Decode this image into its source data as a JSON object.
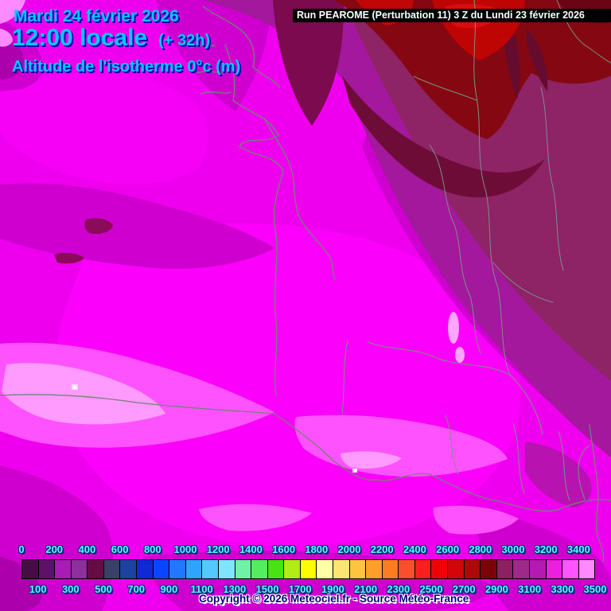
{
  "header": {
    "date": "Mardi 24 février 2026",
    "time": "12:00 locale",
    "offset": "(+ 32h)",
    "variable": "Altitude de l'isotherme 0°c (m)",
    "run_info": "Run PEAROME (Perturbation 11) 3 Z du Lundi 23 février 2026"
  },
  "footer": {
    "copyright": "Copyright © 2026 Meteociel.fr - Source Météo-France"
  },
  "colors": {
    "header_text": "#00c8ff",
    "header_text_outline": "#0008b4",
    "scale_label_text": "#5cf6ff",
    "copyright_text": "#000080",
    "run_bar_bg": "#000000",
    "run_bar_text": "#ffffff"
  },
  "legend": {
    "unit": "m",
    "boundary_labels": [
      "0",
      "100",
      "200",
      "300",
      "400",
      "500",
      "600",
      "700",
      "800",
      "900",
      "1000",
      "1100",
      "1200",
      "1300",
      "1400",
      "1500",
      "1600",
      "1700",
      "1800",
      "1900",
      "2000",
      "2100",
      "2200",
      "2300",
      "2400",
      "2500",
      "2600",
      "2700",
      "2800",
      "2900",
      "3000",
      "3100",
      "3200",
      "3300",
      "3400",
      "3500"
    ],
    "cell_colors": [
      "#450d45",
      "#5f1168",
      "#a81bb4",
      "#8d2f9d",
      "#670b44",
      "#3a4168",
      "#1b429e",
      "#0f2ad2",
      "#0a46ff",
      "#2277ff",
      "#2fa4ff",
      "#55c8ff",
      "#7fe4ff",
      "#6ef2a5",
      "#55ec61",
      "#47e312",
      "#b2ec16",
      "#fdfd02",
      "#ffffa8",
      "#fee473",
      "#fec43e",
      "#fe9f29",
      "#fb7d21",
      "#fb4f2b",
      "#fa1f1f",
      "#ee0407",
      "#d20609",
      "#ad090b",
      "#7b0408",
      "#8c2062",
      "#9d2a88",
      "#b21ab0",
      "#ea1fe0",
      "#fe55fe",
      "#fe8afe"
    ]
  }
}
